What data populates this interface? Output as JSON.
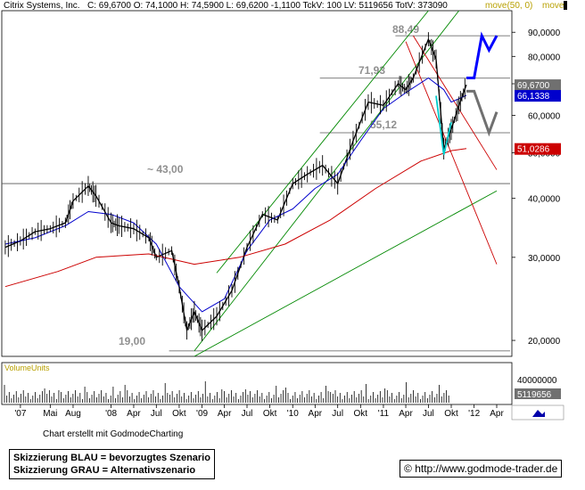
{
  "header": {
    "instrument": "Citrix Systems, Inc.",
    "quote": "C: 69,6700 O: 74,1000 H: 74,5900 L: 69,6200 -1,1100 TckV: 100 LV: 5119656 TotV: 373090",
    "ma_label": "move(50, 0)",
    "ma_label2": "move"
  },
  "colors": {
    "price": "#000000",
    "ma50": "#0000cc",
    "ma200": "#cc0000",
    "channel_green": "#008800",
    "channel_red": "#cc0000",
    "scenario_blue": "#0000ff",
    "scenario_gray": "#707070",
    "triangle": "#00cccc",
    "level_label": "#909090",
    "current_price_bg": "#707070",
    "ma50_bg": "#0000cc",
    "ma200_bg": "#cc0000",
    "ma_label": "#b8a000"
  },
  "chart_data": {
    "type": "line",
    "title": "Citrix Systems, Inc.",
    "y_scale": "log",
    "ylim": [
      18.5,
      100
    ],
    "y_ticks": [
      "90,0000",
      "80,0000",
      "70,0000",
      "60,0000",
      "50,0000",
      "40,0000",
      "30,0000",
      "20,0000"
    ],
    "y_tick_values": [
      90,
      80,
      70,
      60,
      50,
      40,
      30,
      20
    ],
    "x_ticks": [
      "'07",
      "Mai",
      "Aug",
      "'08",
      "Apr",
      "Jul",
      "Okt",
      "'09",
      "Apr",
      "Jul",
      "Okt",
      "'10",
      "Apr",
      "Jul",
      "Okt",
      "'11",
      "Apr",
      "Jul",
      "Okt",
      "'12",
      "Apr"
    ],
    "x_tick_dates": [
      "2007-01",
      "2007-05",
      "2007-08",
      "2008-01",
      "2008-04",
      "2008-07",
      "2008-10",
      "2009-01",
      "2009-04",
      "2009-07",
      "2009-10",
      "2010-01",
      "2010-04",
      "2010-07",
      "2010-10",
      "2011-01",
      "2011-04",
      "2011-07",
      "2011-10",
      "2012-01",
      "2012-04"
    ],
    "series": [
      {
        "name": "Citrix Systems, Inc.",
        "x": [
          "2006-11",
          "2007-01",
          "2007-03",
          "2007-05",
          "2007-07",
          "2007-08",
          "2007-10",
          "2007-11",
          "2008-01",
          "2008-02",
          "2008-04",
          "2008-06",
          "2008-07",
          "2008-09",
          "2008-10",
          "2008-11",
          "2008-12",
          "2009-01",
          "2009-03",
          "2009-05",
          "2009-07",
          "2009-09",
          "2009-11",
          "2010-01",
          "2010-03",
          "2010-05",
          "2010-07",
          "2010-09",
          "2010-11",
          "2011-01",
          "2011-03",
          "2011-04",
          "2011-05",
          "2011-07",
          "2011-08",
          "2011-09",
          "2011-10",
          "2011-11",
          "2011-12"
        ],
        "y": [
          31.5,
          32.5,
          34,
          34.5,
          35.5,
          39.5,
          42.5,
          40.5,
          35.5,
          35,
          34.5,
          33,
          30,
          31,
          26,
          21,
          23,
          21,
          22.5,
          25.5,
          31.5,
          37,
          36,
          43,
          45,
          47,
          43,
          53,
          64,
          63,
          70,
          68,
          72,
          87,
          79,
          51,
          56,
          63,
          69.67
        ]
      },
      {
        "name": "move(50, 0)",
        "x": [
          "2006-11",
          "2007-03",
          "2007-07",
          "2007-10",
          "2008-01",
          "2008-04",
          "2008-07",
          "2008-10",
          "2009-01",
          "2009-04",
          "2009-07",
          "2009-10",
          "2010-01",
          "2010-04",
          "2010-07",
          "2010-10",
          "2011-01",
          "2011-04",
          "2011-07",
          "2011-09",
          "2011-10",
          "2011-12"
        ],
        "y": [
          32,
          33,
          35,
          37.5,
          37,
          35.5,
          32,
          26,
          23,
          24.5,
          31,
          36,
          38,
          42,
          45,
          53,
          62,
          67,
          72,
          68,
          64,
          66.13
        ]
      },
      {
        "name": "",
        "x": [
          "2006-11",
          "2007-06",
          "2007-11",
          "2008-06",
          "2008-12",
          "2009-06",
          "2009-12",
          "2010-06",
          "2010-12",
          "2011-06",
          "2011-10",
          "2011-12"
        ],
        "y": [
          26,
          28,
          30,
          30.5,
          29,
          30,
          32,
          36,
          42,
          48,
          50.5,
          51.03
        ]
      }
    ],
    "levels": [
      {
        "label": "88,49",
        "value": 88.49
      },
      {
        "label": "71,93",
        "value": 71.93
      },
      {
        "label": "55,12",
        "value": 55.12
      },
      {
        "label": "~ 43,00",
        "value": 43.0
      },
      {
        "label": "19,00",
        "value": 19.0
      }
    ],
    "price_tags": [
      {
        "label": "69,6700",
        "value": 69.67,
        "kind": "price"
      },
      {
        "label": "66,1338",
        "value": 66.1338,
        "kind": "ma50"
      },
      {
        "label": "51,0286",
        "value": 51.0286,
        "kind": "ma200"
      }
    ],
    "volume": {
      "title": "VolumeUnits",
      "ticks": [
        "40000000"
      ],
      "last_label": "5119656"
    }
  },
  "footer": {
    "credit": "Chart erstellt mit GodmodeCharting",
    "legend_line1": "Skizzierung BLAU = bevorzugtes Szenario",
    "legend_line2": "Skizzierung GRAU = Alternativszenario",
    "copyright": "©",
    "url": "http://www.godmode-trader.de"
  }
}
